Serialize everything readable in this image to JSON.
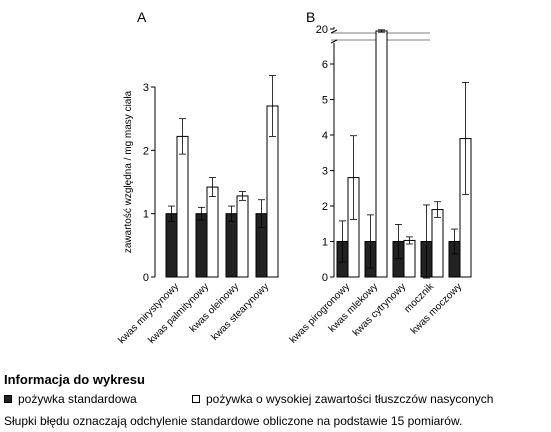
{
  "chart_data": [
    {
      "type": "bar",
      "panel_label": "A",
      "ylabel": "zawartość względna / mg masy ciała",
      "ylim": [
        0,
        3
      ],
      "yticks": [
        0,
        1,
        2,
        3
      ],
      "categories": [
        "kwas mirystynowy",
        "kwas palmitynowy",
        "kwas oleinowy",
        "kwas stearynowy"
      ],
      "series": [
        {
          "values": [
            1,
            1,
            1,
            1
          ],
          "errors": [
            0.12,
            0.1,
            0.12,
            0.22
          ],
          "fill": "#222222"
        },
        {
          "values": [
            2.22,
            1.42,
            1.28,
            2.7
          ],
          "errors": [
            0.28,
            0.15,
            0.07,
            0.48
          ],
          "fill": "#ffffff"
        }
      ]
    },
    {
      "type": "bar",
      "panel_label": "B",
      "ylabel": "",
      "ylim": [
        0,
        6.5
      ],
      "yticks": [
        0,
        1,
        2,
        3,
        4,
        5,
        6
      ],
      "axis_break": {
        "upper_tick": 20,
        "upper_value_shown": 19.3
      },
      "categories": [
        "kwas pirogronowy",
        "kwas mlekowy",
        "kwas cytrynowy",
        "mocznik",
        "kwas moczowy"
      ],
      "series": [
        {
          "values": [
            1,
            1,
            1,
            1,
            1
          ],
          "errors": [
            0.58,
            0.75,
            0.48,
            1.03,
            0.35
          ],
          "fill": "#222222"
        },
        {
          "values": [
            2.8,
            19.3,
            1.03,
            1.9,
            3.9
          ],
          "errors": [
            1.18,
            0.6,
            0.1,
            0.22,
            1.58
          ],
          "fill": "#ffffff"
        }
      ]
    }
  ],
  "legend": {
    "title": "Informacja do wykresu",
    "standard": "pożywka standardowa",
    "high_fat": "pożywka o wysokiej zawartości tłuszczów nasyconych",
    "standard_color": "#222222",
    "high_fat_color": "#ffffff"
  },
  "note": "Słupki błędu oznaczają odchylenie standardowe obliczone na podstawie 15 pomiarów."
}
